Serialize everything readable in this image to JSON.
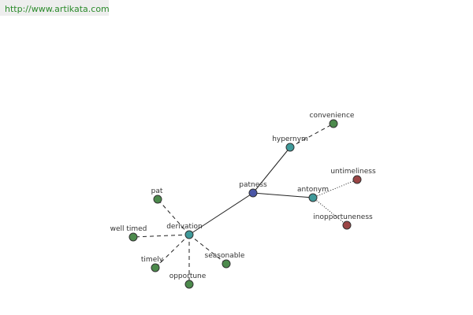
{
  "header": {
    "url": "http://www.artikata.com"
  },
  "nodes": [
    {
      "label": "patness"
    },
    {
      "label": "hypernym"
    },
    {
      "label": "convenience"
    },
    {
      "label": "antonym"
    },
    {
      "label": "untimeliness"
    },
    {
      "label": "inopportuneness"
    },
    {
      "label": "derivation"
    },
    {
      "label": "pat"
    },
    {
      "label": "well timed"
    },
    {
      "label": "timely"
    },
    {
      "label": "opportune"
    },
    {
      "label": "seasonable"
    }
  ]
}
